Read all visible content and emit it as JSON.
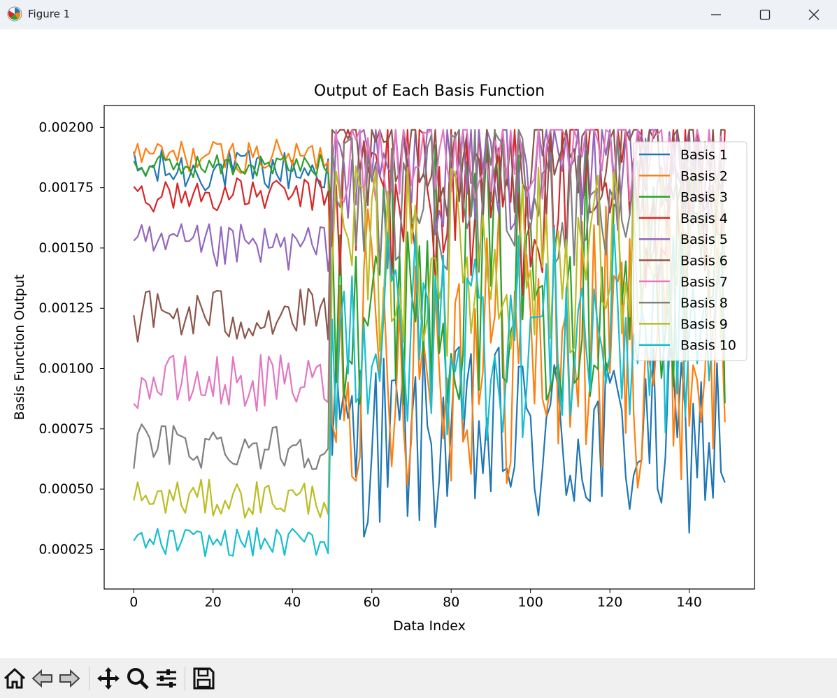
{
  "window": {
    "title": "Figure 1"
  },
  "toolbar": {
    "buttons": [
      "home-icon",
      "back-icon",
      "forward-icon",
      "pan-icon",
      "zoom-icon",
      "configure-icon",
      "save-icon"
    ]
  },
  "colors": [
    "#1f77b4",
    "#ff7f0e",
    "#2ca02c",
    "#d62728",
    "#9467bd",
    "#8c564b",
    "#e377c2",
    "#7f7f7f",
    "#bcbd22",
    "#17becf"
  ],
  "chart_data": {
    "type": "line",
    "title": "Output of Each Basis Function",
    "xlabel": "Data Index",
    "ylabel": "Basis Function Output",
    "xlim": [
      -7.45,
      156.45
    ],
    "ylim": [
      8.59e-05,
      0.0020908
    ],
    "xticks": [
      0,
      20,
      40,
      60,
      80,
      100,
      120,
      140
    ],
    "xtick_labels": [
      "0",
      "20",
      "40",
      "60",
      "80",
      "100",
      "120",
      "140"
    ],
    "yticks": [
      0.00025,
      0.0005,
      0.00075,
      0.001,
      0.00125,
      0.0015,
      0.00175,
      0.002
    ],
    "ytick_labels": [
      "0.00025",
      "0.00050",
      "0.00075",
      "0.00100",
      "0.00125",
      "0.00150",
      "0.00175",
      "0.00200"
    ],
    "grid": false,
    "legend_position": "upper right",
    "x": "0..149",
    "series_segments": [
      {
        "x0": 0,
        "x1": 49,
        "note": "values near each series' baseline level"
      },
      {
        "x0": 50,
        "x1": 149,
        "note": "values fluctuate widely"
      }
    ],
    "series": [
      {
        "name": "Basis 1",
        "segment1_level": 0.00182,
        "segment1_spread": 9e-05,
        "segment2_level": 0.0007,
        "segment2_spread": 0.0004
      },
      {
        "name": "Basis 2",
        "segment1_level": 0.00188,
        "segment1_spread": 7e-05,
        "segment2_level": 0.0011,
        "segment2_spread": 0.0006
      },
      {
        "name": "Basis 3",
        "segment1_level": 0.00184,
        "segment1_spread": 5e-05,
        "segment2_level": 0.0014,
        "segment2_spread": 0.00055
      },
      {
        "name": "Basis 4",
        "segment1_level": 0.00172,
        "segment1_spread": 7e-05,
        "segment2_level": 0.00175,
        "segment2_spread": 0.00045
      },
      {
        "name": "Basis 5",
        "segment1_level": 0.0015,
        "segment1_spread": 0.0001,
        "segment2_level": 0.00185,
        "segment2_spread": 0.0003
      },
      {
        "name": "Basis 6",
        "segment1_level": 0.00122,
        "segment1_spread": 0.00012,
        "segment2_level": 0.00188,
        "segment2_spread": 0.00025
      },
      {
        "name": "Basis 7",
        "segment1_level": 0.00094,
        "segment1_spread": 0.00012,
        "segment2_level": 0.0019,
        "segment2_spread": 0.00022
      },
      {
        "name": "Basis 8",
        "segment1_level": 0.00068,
        "segment1_spread": 0.0001,
        "segment2_level": 0.0017,
        "segment2_spread": 0.0003
      },
      {
        "name": "Basis 9",
        "segment1_level": 0.00046,
        "segment1_spread": 8e-05,
        "segment2_level": 0.00145,
        "segment2_spread": 0.0004
      },
      {
        "name": "Basis 10",
        "segment1_level": 0.00028,
        "segment1_spread": 6e-05,
        "segment2_level": 0.00115,
        "segment2_spread": 0.00045
      }
    ]
  }
}
